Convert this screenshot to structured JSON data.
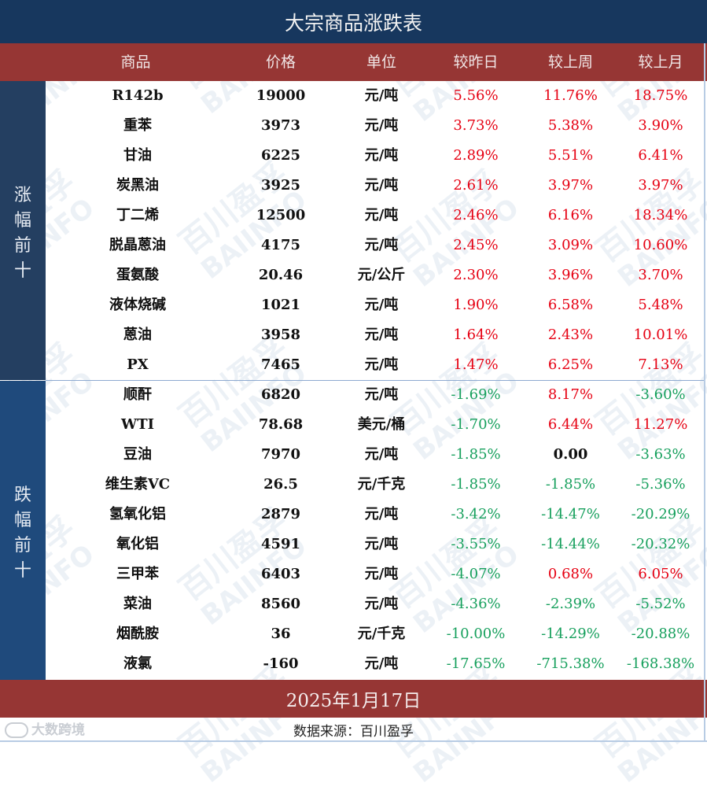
{
  "title": "大宗商品涨跌表",
  "columns": [
    "商品",
    "价格",
    "单位",
    "较昨日",
    "较上周",
    "较上月"
  ],
  "sections": {
    "gainers_label": [
      "涨",
      "幅",
      "前",
      "十"
    ],
    "losers_label": [
      "跌",
      "幅",
      "前",
      "十"
    ]
  },
  "colors": {
    "title_bg": "#17375e",
    "header_bg": "#963634",
    "side_top_bg": "#243f61",
    "side_bottom_bg": "#1f4a7c",
    "positive": "#e60012",
    "negative": "#17a05d"
  },
  "rows": [
    {
      "name": "R142b",
      "price": "19000",
      "unit": "元/吨",
      "day": "5.56%",
      "week": "11.76%",
      "month": "18.75%"
    },
    {
      "name": "重苯",
      "price": "3973",
      "unit": "元/吨",
      "day": "3.73%",
      "week": "5.38%",
      "month": "3.90%"
    },
    {
      "name": "甘油",
      "price": "6225",
      "unit": "元/吨",
      "day": "2.89%",
      "week": "5.51%",
      "month": "6.41%"
    },
    {
      "name": "炭黑油",
      "price": "3925",
      "unit": "元/吨",
      "day": "2.61%",
      "week": "3.97%",
      "month": "3.97%"
    },
    {
      "name": "丁二烯",
      "price": "12500",
      "unit": "元/吨",
      "day": "2.46%",
      "week": "6.16%",
      "month": "18.34%"
    },
    {
      "name": "脱晶蒽油",
      "price": "4175",
      "unit": "元/吨",
      "day": "2.45%",
      "week": "3.09%",
      "month": "10.60%"
    },
    {
      "name": "蛋氨酸",
      "price": "20.46",
      "unit": "元/公斤",
      "day": "2.30%",
      "week": "3.96%",
      "month": "3.70%"
    },
    {
      "name": "液体烧碱",
      "price": "1021",
      "unit": "元/吨",
      "day": "1.90%",
      "week": "6.58%",
      "month": "5.48%"
    },
    {
      "name": "蒽油",
      "price": "3958",
      "unit": "元/吨",
      "day": "1.64%",
      "week": "2.43%",
      "month": "10.01%"
    },
    {
      "name": "PX",
      "price": "7465",
      "unit": "元/吨",
      "day": "1.47%",
      "week": "6.25%",
      "month": "7.13%"
    },
    {
      "name": "顺酐",
      "price": "6820",
      "unit": "元/吨",
      "day": "-1.69%",
      "week": "8.17%",
      "month": "-3.60%"
    },
    {
      "name": "WTI",
      "price": "78.68",
      "unit": "美元/桶",
      "day": "-1.70%",
      "week": "6.44%",
      "month": "11.27%"
    },
    {
      "name": "豆油",
      "price": "7970",
      "unit": "元/吨",
      "day": "-1.85%",
      "week": "0.00",
      "month": "-3.63%"
    },
    {
      "name": "维生素VC",
      "price": "26.5",
      "unit": "元/千克",
      "day": "-1.85%",
      "week": "-1.85%",
      "month": "-5.36%"
    },
    {
      "name": "氢氧化铝",
      "price": "2879",
      "unit": "元/吨",
      "day": "-3.42%",
      "week": "-14.47%",
      "month": "-20.29%"
    },
    {
      "name": "氧化铝",
      "price": "4591",
      "unit": "元/吨",
      "day": "-3.55%",
      "week": "-14.44%",
      "month": "-20.32%"
    },
    {
      "name": "三甲苯",
      "price": "6403",
      "unit": "元/吨",
      "day": "-4.07%",
      "week": "0.68%",
      "month": "6.05%"
    },
    {
      "name": "菜油",
      "price": "8560",
      "unit": "元/吨",
      "day": "-4.36%",
      "week": "-2.39%",
      "month": "-5.52%"
    },
    {
      "name": "烟酰胺",
      "price": "36",
      "unit": "元/千克",
      "day": "-10.00%",
      "week": "-14.29%",
      "month": "-20.88%"
    },
    {
      "name": "液氯",
      "price": "-160",
      "unit": "元/吨",
      "day": "-17.65%",
      "week": "-715.38%",
      "month": "-168.38%"
    }
  ],
  "date": "2025年1月17日",
  "source": "数据来源：百川盈孚",
  "brand": "大数跨境",
  "watermark": {
    "cn": "百川盈孚",
    "en": "BAIINFO"
  }
}
